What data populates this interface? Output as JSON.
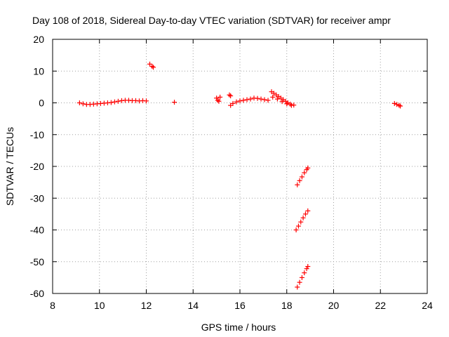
{
  "chart_data": {
    "type": "scatter",
    "title": "Day 108 of 2018, Sidereal Day-to-day VTEC variation (SDTVAR) for receiver ampr",
    "xlabel": "GPS time / hours",
    "ylabel": "SDTVAR / TECUs",
    "xlim": [
      8,
      24
    ],
    "ylim": [
      -60,
      20
    ],
    "xticks": [
      8,
      10,
      12,
      14,
      16,
      18,
      20,
      22,
      24
    ],
    "yticks": [
      -60,
      -50,
      -40,
      -30,
      -20,
      -10,
      0,
      10,
      20
    ],
    "grid": true,
    "marker_color": "#ff0000",
    "marker": "plus",
    "series": [
      {
        "values": [
          [
            9.15,
            0.0
          ],
          [
            9.3,
            -0.3
          ],
          [
            9.45,
            -0.5
          ],
          [
            9.6,
            -0.5
          ],
          [
            9.75,
            -0.4
          ],
          [
            9.9,
            -0.3
          ],
          [
            10.05,
            -0.2
          ],
          [
            10.2,
            -0.1
          ],
          [
            10.35,
            0.0
          ],
          [
            10.5,
            0.1
          ],
          [
            10.65,
            0.3
          ],
          [
            10.8,
            0.5
          ],
          [
            10.95,
            0.7
          ],
          [
            11.1,
            0.8
          ],
          [
            11.25,
            0.8
          ],
          [
            11.4,
            0.7
          ],
          [
            11.55,
            0.7
          ],
          [
            11.7,
            0.6
          ],
          [
            11.85,
            0.7
          ],
          [
            12.0,
            0.6
          ],
          [
            12.15,
            12.2
          ],
          [
            12.25,
            11.5
          ],
          [
            12.3,
            11.2
          ],
          [
            13.2,
            0.2
          ],
          [
            15.0,
            1.5
          ],
          [
            15.05,
            0.8
          ],
          [
            15.1,
            0.5
          ],
          [
            15.15,
            1.8
          ],
          [
            15.55,
            2.5
          ],
          [
            15.6,
            2.2
          ],
          [
            15.6,
            -0.8
          ],
          [
            15.7,
            -0.2
          ],
          [
            15.85,
            0.3
          ],
          [
            16.0,
            0.6
          ],
          [
            16.15,
            0.8
          ],
          [
            16.3,
            1.0
          ],
          [
            16.45,
            1.2
          ],
          [
            16.6,
            1.5
          ],
          [
            16.75,
            1.4
          ],
          [
            16.9,
            1.2
          ],
          [
            17.05,
            1.0
          ],
          [
            17.2,
            0.8
          ],
          [
            17.35,
            3.5
          ],
          [
            17.45,
            3.0
          ],
          [
            17.55,
            2.5
          ],
          [
            17.65,
            2.0
          ],
          [
            17.75,
            1.5
          ],
          [
            17.85,
            1.0
          ],
          [
            17.95,
            0.5
          ],
          [
            18.05,
            0.0
          ],
          [
            18.15,
            -0.4
          ],
          [
            18.3,
            -0.7
          ],
          [
            17.4,
            1.8
          ],
          [
            17.6,
            1.2
          ],
          [
            17.8,
            0.4
          ],
          [
            18.0,
            -0.3
          ],
          [
            18.2,
            -0.8
          ],
          [
            18.45,
            -25.8
          ],
          [
            18.55,
            -24.5
          ],
          [
            18.65,
            -23.3
          ],
          [
            18.75,
            -22.0
          ],
          [
            18.85,
            -21.0
          ],
          [
            18.9,
            -20.5
          ],
          [
            18.4,
            -40.0
          ],
          [
            18.5,
            -38.8
          ],
          [
            18.6,
            -37.5
          ],
          [
            18.7,
            -36.2
          ],
          [
            18.8,
            -35.0
          ],
          [
            18.9,
            -34.0
          ],
          [
            18.45,
            -58.0
          ],
          [
            18.55,
            -56.5
          ],
          [
            18.65,
            -55.0
          ],
          [
            18.75,
            -53.5
          ],
          [
            18.85,
            -52.2
          ],
          [
            18.9,
            -51.5
          ],
          [
            22.6,
            -0.2
          ],
          [
            22.7,
            -0.5
          ],
          [
            22.8,
            -0.8
          ],
          [
            22.85,
            -1.0
          ]
        ]
      }
    ]
  }
}
